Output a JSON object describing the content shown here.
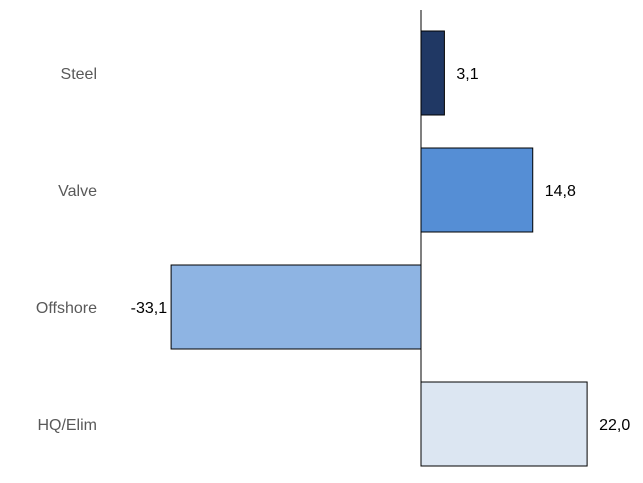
{
  "chart_data": {
    "type": "bar",
    "orientation": "horizontal",
    "categories": [
      "Steel",
      "Valve",
      "Offshore",
      "HQ/Elim"
    ],
    "values": [
      3.1,
      14.8,
      -33.1,
      22.0
    ],
    "value_labels": [
      "3,1",
      "14,8",
      "-33,1",
      "22,0"
    ],
    "bar_colors": [
      "#203864",
      "#558ED5",
      "#8EB4E3",
      "#DCE6F2"
    ],
    "title": "",
    "xlabel": "",
    "ylabel": "",
    "grid": false,
    "legend": false
  }
}
